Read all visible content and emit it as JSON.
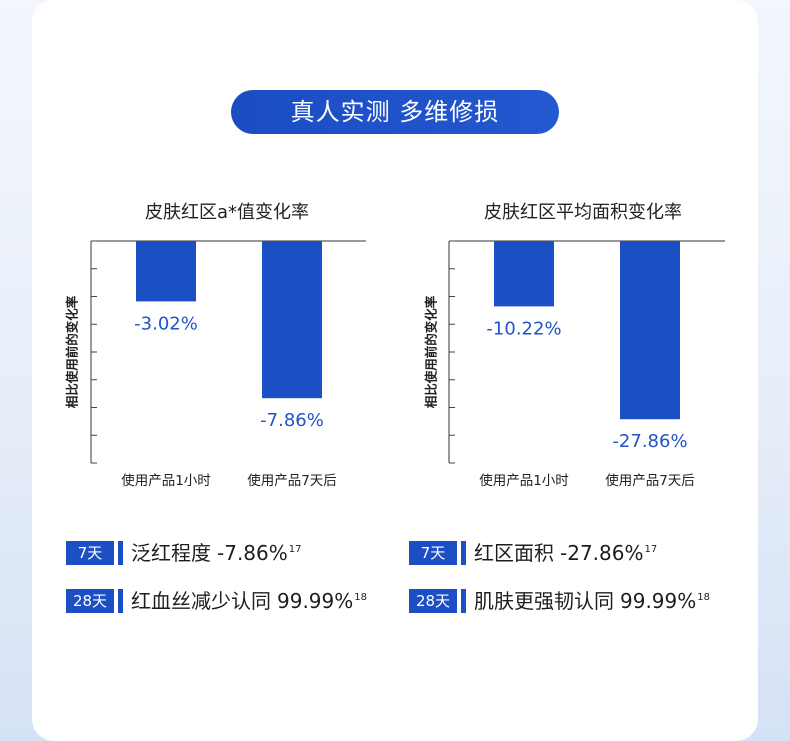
{
  "header": {
    "title": "真人实测 多维修损"
  },
  "colors": {
    "bar": "#1d4fc4",
    "data_label": "#2154c6",
    "accent": "#1d4fc4",
    "text": "#222222"
  },
  "chart_data": [
    {
      "type": "bar",
      "title": "皮肤红区a*值变化率",
      "xlabel": "",
      "ylabel": "相比使用前的变化率",
      "categories": [
        "使用产品1小时",
        "使用产品7天后"
      ],
      "values": [
        -3.02,
        -7.86
      ],
      "data_labels": [
        "-3.02%",
        "-7.86%"
      ],
      "ylim": [
        -11.1,
        0
      ],
      "grid": false,
      "legend": "none"
    },
    {
      "type": "bar",
      "title": "皮肤红区平均面积变化率",
      "xlabel": "",
      "ylabel": "相比使用前的变化率",
      "categories": [
        "使用产品1小时",
        "使用产品7天后"
      ],
      "values": [
        -10.22,
        -27.86
      ],
      "data_labels": [
        "-10.22%",
        "-27.86%"
      ],
      "ylim": [
        -34.7,
        0
      ],
      "grid": false,
      "legend": "none"
    }
  ],
  "results": {
    "left": [
      {
        "badge": "7天",
        "label": "泛红程度",
        "value": "-7.86%",
        "sup": "17"
      },
      {
        "badge": "28天",
        "label": "红血丝减少认同",
        "value": "99.99%",
        "sup": "18"
      }
    ],
    "right": [
      {
        "badge": "7天",
        "label": "红区面积",
        "value": "-27.86%",
        "sup": "17"
      },
      {
        "badge": "28天",
        "label": "肌肤更强韧认同",
        "value": "99.99%",
        "sup": "18"
      }
    ]
  }
}
